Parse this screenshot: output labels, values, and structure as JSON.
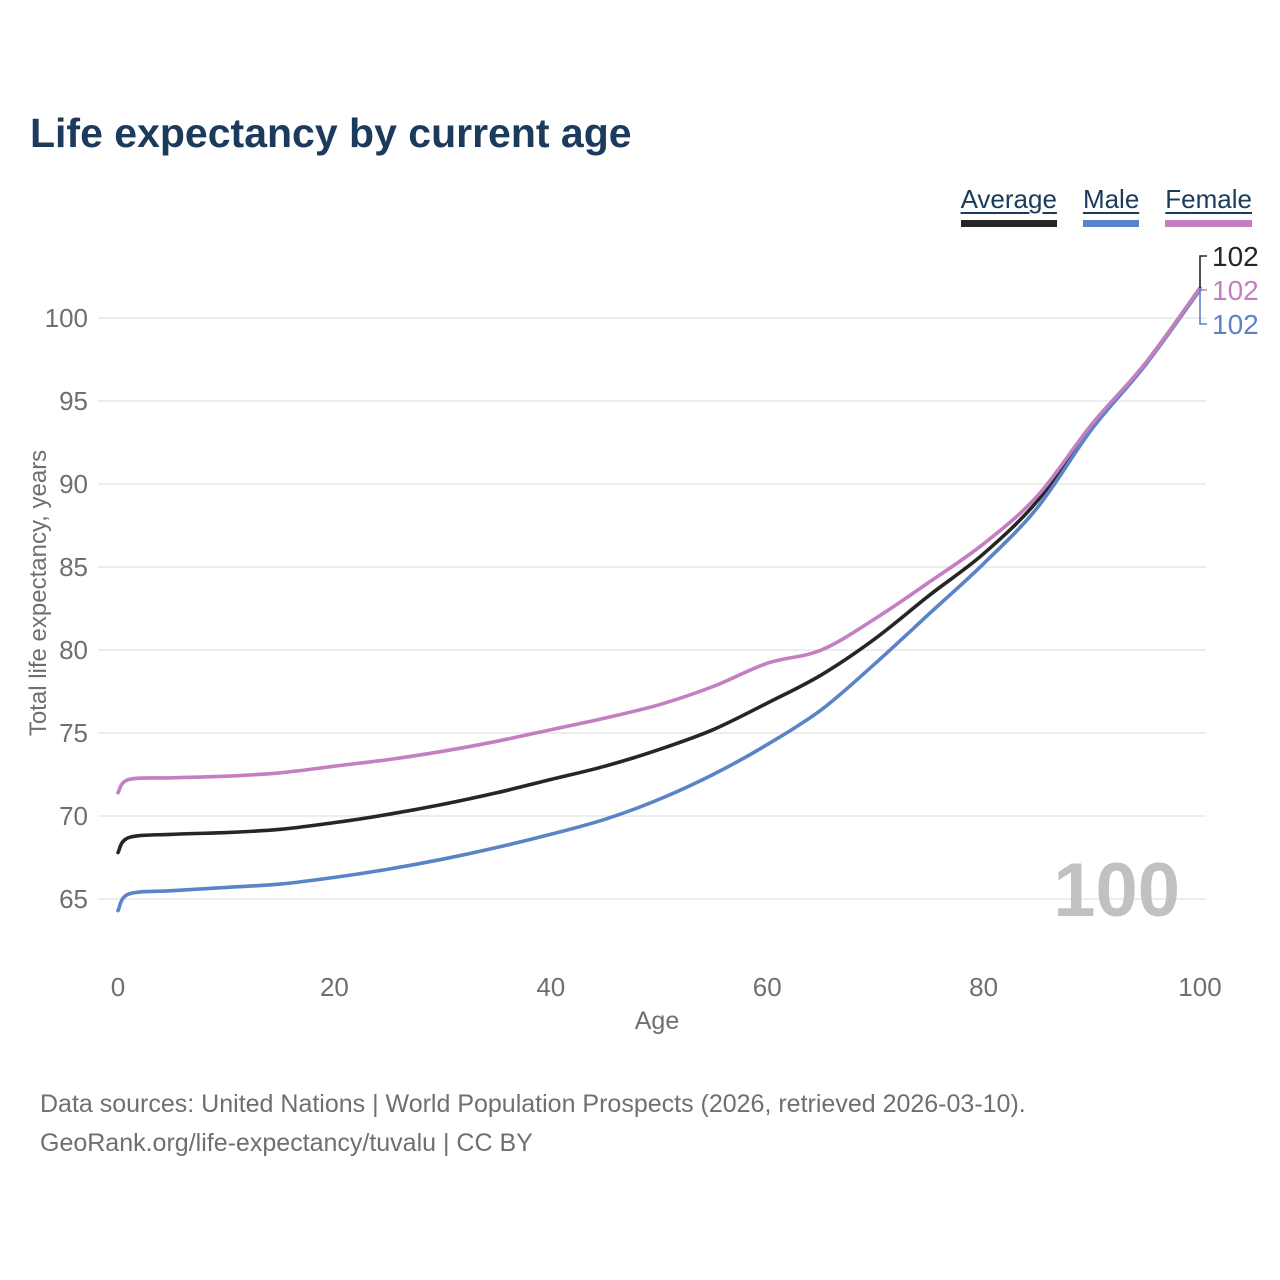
{
  "title": "Life expectancy by current age",
  "legend": [
    {
      "label": "Average",
      "color": "#262626"
    },
    {
      "label": "Male",
      "color": "#5b84c8"
    },
    {
      "label": "Female",
      "color": "#c47ec2"
    }
  ],
  "watermark": "100",
  "footer": {
    "line1": "Data sources: United Nations | World Population Prospects (2026, retrieved 2026-03-10).",
    "line2": "GeoRank.org/life-expectancy/tuvalu | CC BY"
  },
  "colors": {
    "title_text": "#1c3a5c",
    "axis_text": "#6f6f6f",
    "gridline": "#e7e7e7",
    "watermark": "#c1c1c1",
    "average_line": "#262626",
    "male_line": "#5b84c8",
    "female_line": "#c47ec2"
  },
  "chart_data": {
    "type": "line",
    "title": "Life expectancy by current age",
    "xlabel": "Age",
    "ylabel": "Total life expectancy, years",
    "xlim": [
      0,
      100
    ],
    "ylim": [
      65,
      102
    ],
    "x_ticks": [
      0,
      20,
      40,
      60,
      80,
      100
    ],
    "y_ticks": [
      65,
      70,
      75,
      80,
      85,
      90,
      95,
      100
    ],
    "grid": "horizontal-only",
    "legend_position": "top-right",
    "x": [
      0,
      1,
      5,
      10,
      15,
      20,
      25,
      30,
      35,
      40,
      45,
      50,
      55,
      60,
      65,
      70,
      75,
      80,
      85,
      90,
      95,
      100
    ],
    "series": [
      {
        "name": "Average",
        "color": "#262626",
        "values": [
          67.8,
          68.7,
          68.9,
          69.0,
          69.2,
          69.6,
          70.1,
          70.7,
          71.4,
          72.2,
          73.0,
          74.0,
          75.2,
          76.8,
          78.5,
          80.7,
          83.3,
          85.8,
          89.0,
          93.5,
          97.3,
          101.8
        ],
        "end_label": "102"
      },
      {
        "name": "Male",
        "color": "#5b84c8",
        "values": [
          64.3,
          65.3,
          65.5,
          65.7,
          65.9,
          66.3,
          66.8,
          67.4,
          68.1,
          68.9,
          69.8,
          71.0,
          72.5,
          74.3,
          76.4,
          79.2,
          82.2,
          85.2,
          88.6,
          93.3,
          97.2,
          101.7
        ],
        "end_label": "102"
      },
      {
        "name": "Female",
        "color": "#c47ec2",
        "values": [
          71.4,
          72.2,
          72.3,
          72.4,
          72.6,
          73.0,
          73.4,
          73.9,
          74.5,
          75.2,
          75.9,
          76.7,
          77.8,
          79.2,
          80.0,
          81.9,
          84.1,
          86.4,
          89.3,
          93.6,
          97.3,
          101.8
        ],
        "end_label": "102"
      }
    ]
  }
}
